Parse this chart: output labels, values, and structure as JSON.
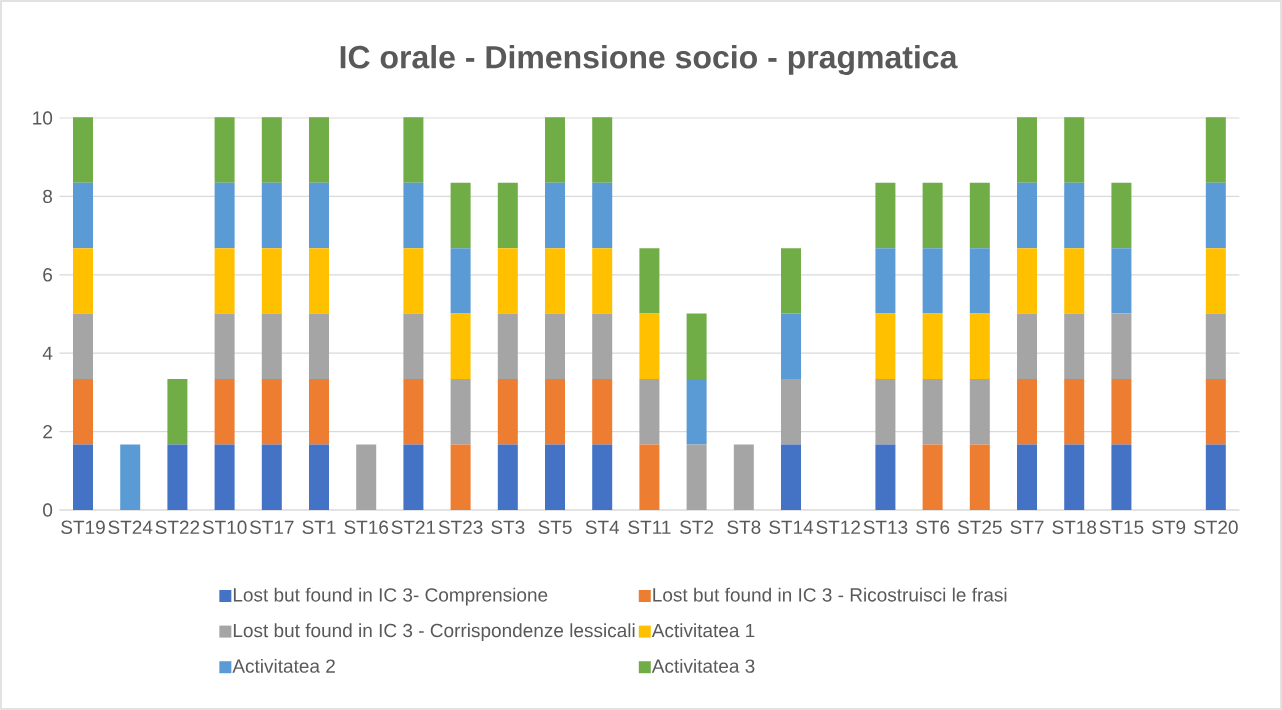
{
  "chart_data": {
    "type": "bar",
    "stacked": true,
    "title": "IC orale - Dimensione socio - pragmatica",
    "categories": [
      "ST19",
      "ST24",
      "ST22",
      "ST10",
      "ST17",
      "ST1",
      "ST16",
      "ST21",
      "ST23",
      "ST3",
      "ST5",
      "ST4",
      "ST11",
      "ST2",
      "ST8",
      "ST14",
      "ST12",
      "ST13",
      "ST6",
      "ST25",
      "ST7",
      "ST18",
      "ST15",
      "ST9",
      "ST20"
    ],
    "series": [
      {
        "name": "Lost but found in IC 3- Comprensione",
        "color": "#4472c4",
        "values": [
          1.67,
          0,
          1.67,
          1.67,
          1.67,
          1.67,
          0,
          1.67,
          0,
          1.67,
          1.67,
          1.67,
          0,
          0,
          0,
          1.67,
          0,
          1.67,
          0,
          0,
          1.67,
          1.67,
          1.67,
          0,
          1.67
        ]
      },
      {
        "name": "Lost but found in IC 3 - Ricostruisci le frasi",
        "color": "#ed7d31",
        "values": [
          1.67,
          0,
          0,
          1.67,
          1.67,
          1.67,
          0,
          1.67,
          1.67,
          1.67,
          1.67,
          1.67,
          1.67,
          0,
          0,
          0,
          0,
          0,
          1.67,
          1.67,
          1.67,
          1.67,
          1.67,
          0,
          1.67
        ]
      },
      {
        "name": "Lost but found in IC 3 - Corrispondenze lessicali",
        "color": "#a5a5a5",
        "values": [
          1.67,
          0,
          0,
          1.67,
          1.67,
          1.67,
          1.67,
          1.67,
          1.67,
          1.67,
          1.67,
          1.67,
          1.67,
          1.67,
          1.67,
          1.67,
          0,
          1.67,
          1.67,
          1.67,
          1.67,
          1.67,
          1.67,
          0,
          1.67
        ]
      },
      {
        "name": "Activitatea 1",
        "color": "#ffc000",
        "values": [
          1.67,
          0,
          0,
          1.67,
          1.67,
          1.67,
          0,
          1.67,
          1.67,
          1.67,
          1.67,
          1.67,
          1.67,
          0,
          0,
          0,
          0,
          1.67,
          1.67,
          1.67,
          1.67,
          1.67,
          0,
          0,
          1.67
        ]
      },
      {
        "name": "Activitatea 2",
        "color": "#5b9bd5",
        "values": [
          1.67,
          1.67,
          0,
          1.67,
          1.67,
          1.67,
          0,
          1.67,
          1.67,
          0,
          1.67,
          1.67,
          0,
          1.67,
          0,
          1.67,
          0,
          1.67,
          1.67,
          1.67,
          1.67,
          1.67,
          1.67,
          0,
          1.67
        ]
      },
      {
        "name": "Activitatea 3",
        "color": "#70ad47",
        "values": [
          1.67,
          0,
          1.67,
          1.67,
          1.67,
          1.67,
          0,
          1.67,
          1.67,
          1.67,
          1.67,
          1.67,
          1.67,
          1.67,
          0,
          1.67,
          0,
          1.67,
          1.67,
          1.67,
          1.67,
          1.67,
          1.67,
          0,
          1.67
        ]
      }
    ],
    "ylim": [
      0,
      10
    ],
    "yticks": [
      0,
      2,
      4,
      6,
      8,
      10
    ],
    "grid": "y",
    "legend": "bottom"
  }
}
